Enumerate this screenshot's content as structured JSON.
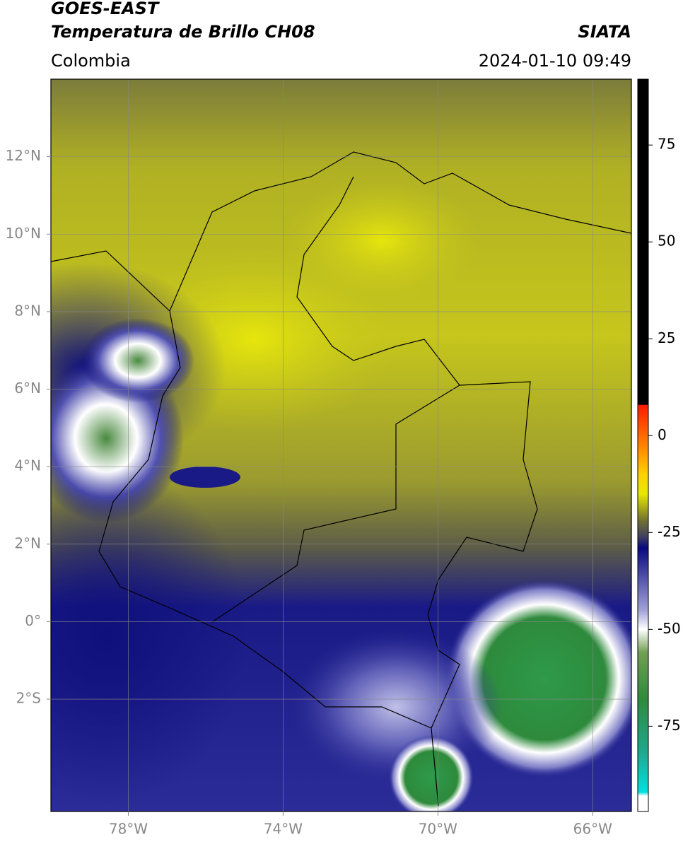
{
  "chart_data": {
    "type": "map",
    "title": "GOES-EAST",
    "subtitle": "Temperatura de Brillo CH08",
    "source": "SIATA",
    "region": "Colombia",
    "datetime": "2024-01-10 09:49",
    "xlim": [
      -80,
      -65
    ],
    "ylim": [
      -4.9,
      14
    ],
    "xticks": [
      {
        "value": -78,
        "label": "78°W"
      },
      {
        "value": -74,
        "label": "74°W"
      },
      {
        "value": -70,
        "label": "70°W"
      },
      {
        "value": -66,
        "label": "66°W"
      }
    ],
    "yticks": [
      {
        "value": 12,
        "label": "12°N"
      },
      {
        "value": 10,
        "label": "10°N"
      },
      {
        "value": 8,
        "label": "8°N"
      },
      {
        "value": 6,
        "label": "6°N"
      },
      {
        "value": 4,
        "label": "4°N"
      },
      {
        "value": 2,
        "label": "2°N"
      },
      {
        "value": 0,
        "label": "0°"
      },
      {
        "value": -2,
        "label": "2°S"
      }
    ],
    "grid": true,
    "colorbar": {
      "lim": [
        -97,
        92
      ],
      "ticks": [
        75,
        50,
        25,
        0,
        -25,
        -50,
        -75
      ],
      "colormap": [
        {
          "value": 92,
          "color": "#000000"
        },
        {
          "value": 8,
          "color": "#000000"
        },
        {
          "value": 7.9,
          "color": "#ff1a00"
        },
        {
          "value": 0,
          "color": "#ff6a00"
        },
        {
          "value": -10,
          "color": "#ffd000"
        },
        {
          "value": -15,
          "color": "#e8e800"
        },
        {
          "value": -22,
          "color": "#707030"
        },
        {
          "value": -26,
          "color": "#404060"
        },
        {
          "value": -29,
          "color": "#0a0a80"
        },
        {
          "value": -45,
          "color": "#a0a0d8"
        },
        {
          "value": -50,
          "color": "#ffffff"
        },
        {
          "value": -56,
          "color": "#70a050"
        },
        {
          "value": -68,
          "color": "#2e8a3c"
        },
        {
          "value": -82,
          "color": "#20a890"
        },
        {
          "value": -92,
          "color": "#00e0e0"
        },
        {
          "value": -93,
          "color": "#ffffff"
        },
        {
          "value": -97,
          "color": "#ffffff"
        }
      ]
    }
  }
}
